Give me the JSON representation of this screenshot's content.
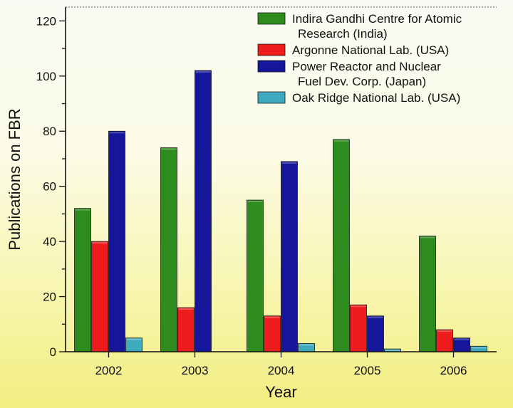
{
  "chart_data": {
    "type": "bar",
    "title": "",
    "xlabel": "Year",
    "ylabel": "Publications on FBR",
    "categories": [
      "2002",
      "2003",
      "2004",
      "2005",
      "2006"
    ],
    "ylim": [
      0,
      125
    ],
    "yticks": [
      0,
      20,
      40,
      60,
      80,
      100,
      120
    ],
    "legend_position": "top-right",
    "series": [
      {
        "name": "Indira Gandhi Centre for Atomic Research (India)",
        "legend_lines": [
          "Indira Gandhi Centre for Atomic",
          "Research (India)"
        ],
        "color": "#2e8b1e",
        "values": [
          52,
          74,
          55,
          77,
          42
        ]
      },
      {
        "name": "Argonne National Lab. (USA)",
        "legend_lines": [
          "Argonne National Lab. (USA)"
        ],
        "color": "#ee1c1c",
        "values": [
          40,
          16,
          13,
          17,
          8
        ]
      },
      {
        "name": "Power Reactor and Nuclear Fuel Dev. Corp. (Japan)",
        "legend_lines": [
          "Power Reactor and Nuclear",
          "Fuel Dev. Corp. (Japan)"
        ],
        "color": "#15169a",
        "values": [
          80,
          102,
          69,
          13,
          5
        ]
      },
      {
        "name": "Oak Ridge National Lab. (USA)",
        "legend_lines": [
          "Oak Ridge National Lab. (USA)"
        ],
        "color": "#3fa9bd",
        "values": [
          5,
          0,
          3,
          1,
          2
        ]
      }
    ]
  }
}
